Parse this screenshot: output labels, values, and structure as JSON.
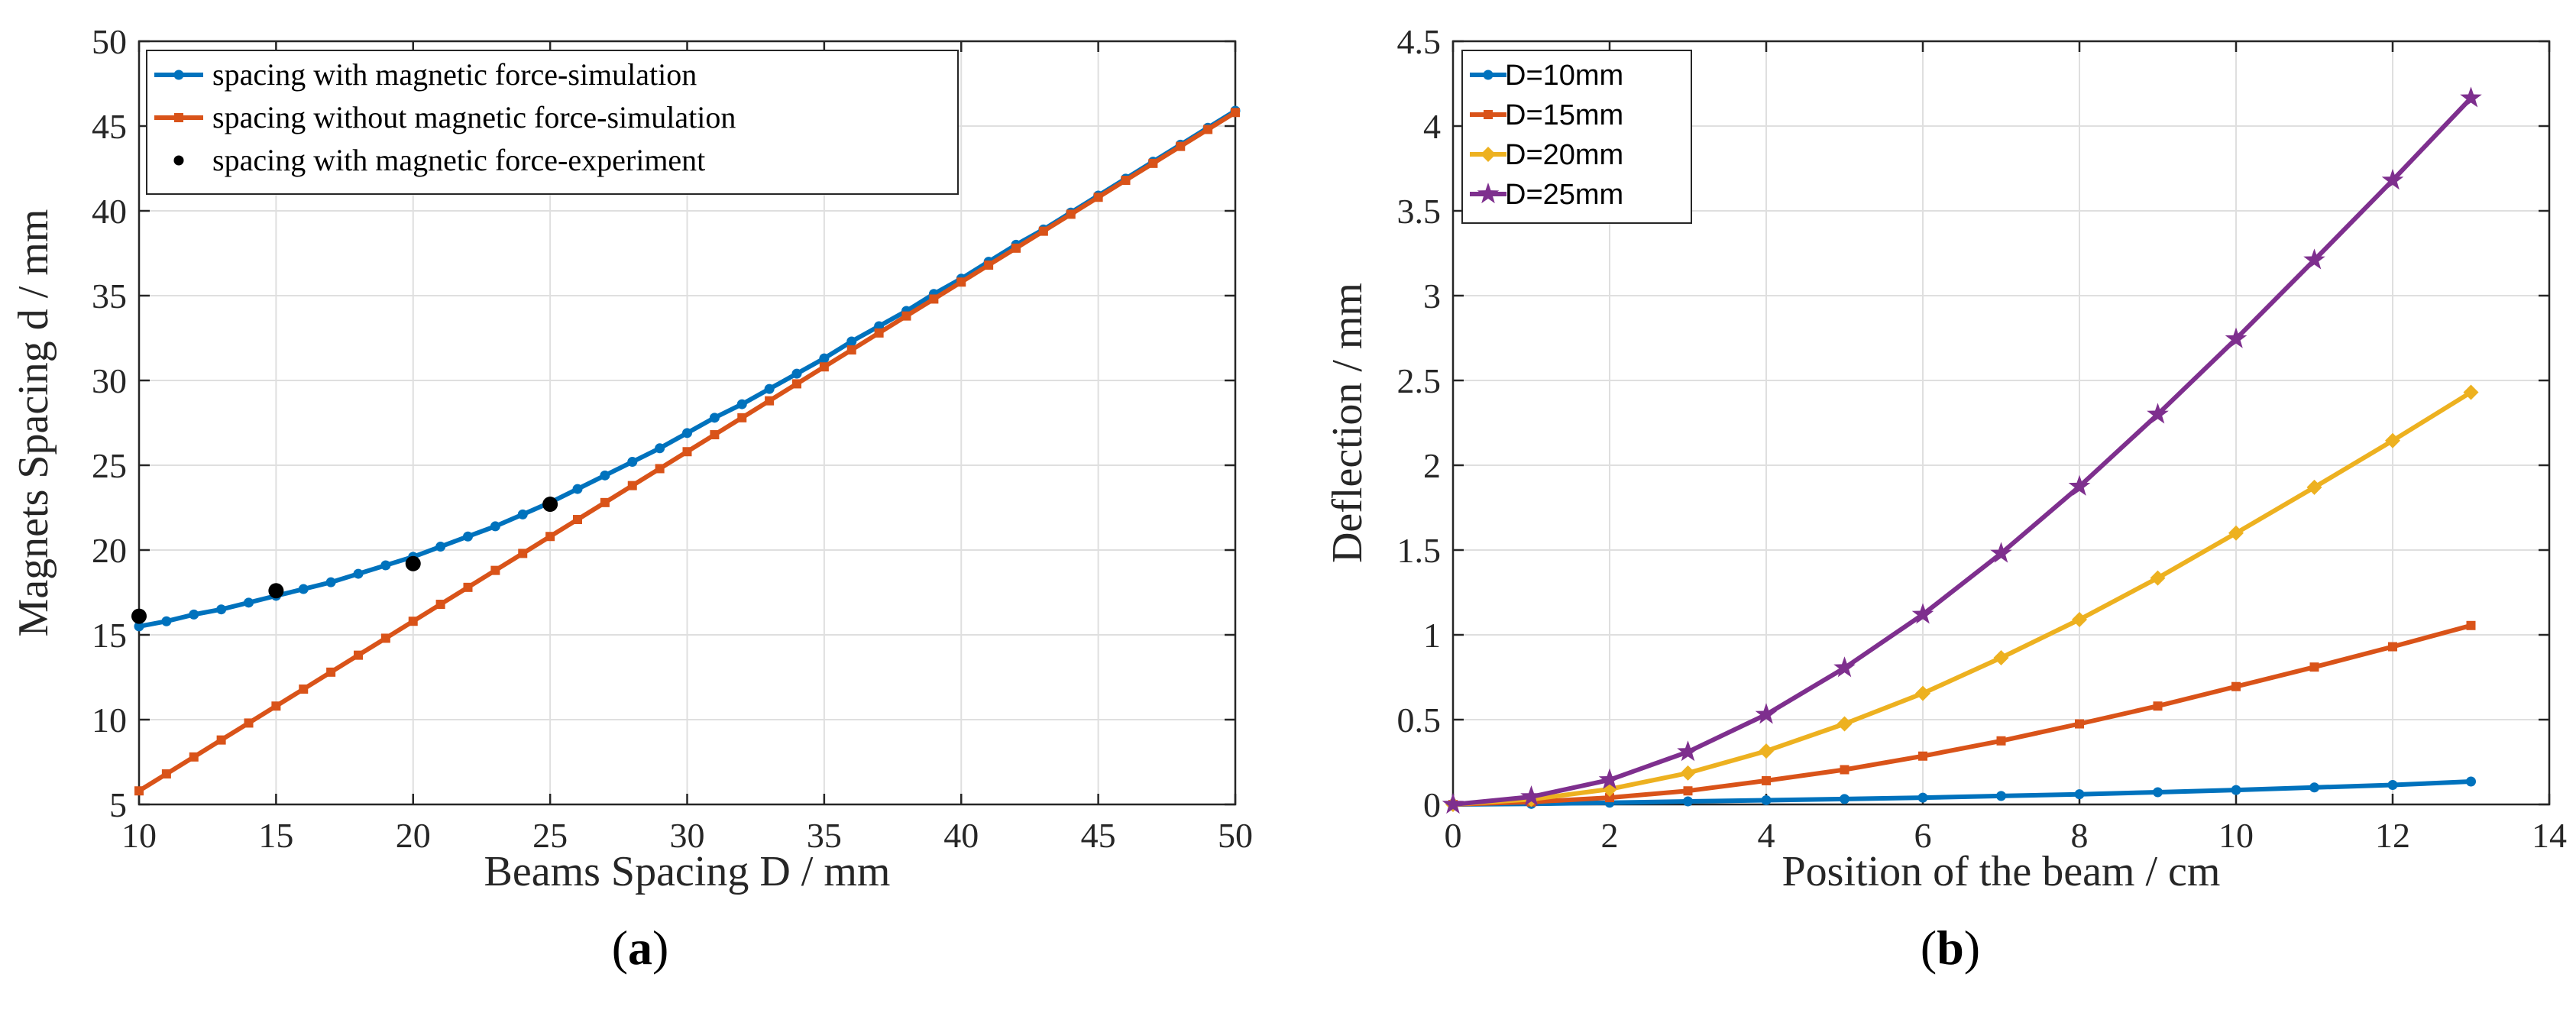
{
  "chart_data": [
    {
      "type": "line",
      "caption_letter": "a",
      "xlabel": "Beams Spacing D / mm",
      "ylabel": "Magnets Spacing d / mm",
      "xlim": [
        10,
        50
      ],
      "ylim": [
        5,
        50
      ],
      "xticks": [
        10,
        15,
        20,
        25,
        30,
        35,
        40,
        45,
        50
      ],
      "yticks": [
        5,
        10,
        15,
        20,
        25,
        30,
        35,
        40,
        45,
        50
      ],
      "grid": true,
      "legend_position": "top-left",
      "series": [
        {
          "name": "spacing with magnetic force-simulation",
          "color": "#0072BD",
          "marker": "dot",
          "x": [
            10,
            11,
            12,
            13,
            14,
            15,
            16,
            17,
            18,
            19,
            20,
            21,
            22,
            23,
            24,
            25,
            26,
            27,
            28,
            29,
            30,
            31,
            32,
            33,
            34,
            35,
            36,
            37,
            38,
            39,
            40,
            41,
            42,
            43,
            44,
            45,
            46,
            47,
            48,
            49,
            50
          ],
          "y": [
            15.5,
            15.8,
            16.2,
            16.5,
            16.9,
            17.3,
            17.7,
            18.1,
            18.6,
            19.1,
            19.6,
            20.2,
            20.8,
            21.4,
            22.1,
            22.8,
            23.6,
            24.4,
            25.2,
            26.0,
            26.9,
            27.8,
            28.6,
            29.5,
            30.4,
            31.3,
            32.3,
            33.2,
            34.1,
            35.1,
            36.0,
            37.0,
            38.0,
            38.9,
            39.9,
            40.9,
            41.9,
            42.9,
            43.9,
            44.9,
            45.9
          ]
        },
        {
          "name": "spacing without magnetic force-simulation",
          "color": "#D95319",
          "marker": "square",
          "x": [
            10,
            11,
            12,
            13,
            14,
            15,
            16,
            17,
            18,
            19,
            20,
            21,
            22,
            23,
            24,
            25,
            26,
            27,
            28,
            29,
            30,
            31,
            32,
            33,
            34,
            35,
            36,
            37,
            38,
            39,
            40,
            41,
            42,
            43,
            44,
            45,
            46,
            47,
            48,
            49,
            50
          ],
          "y": [
            5.8,
            6.8,
            7.8,
            8.8,
            9.8,
            10.8,
            11.8,
            12.8,
            13.8,
            14.8,
            15.8,
            16.8,
            17.8,
            18.8,
            19.8,
            20.8,
            21.8,
            22.8,
            23.8,
            24.8,
            25.8,
            26.8,
            27.8,
            28.8,
            29.8,
            30.8,
            31.8,
            32.8,
            33.8,
            34.8,
            35.8,
            36.8,
            37.8,
            38.8,
            39.8,
            40.8,
            41.8,
            42.8,
            43.8,
            44.8,
            45.8
          ]
        },
        {
          "name": "spacing with magnetic force-experiment",
          "color": "#000000",
          "marker": "big-dot",
          "line": false,
          "x": [
            10,
            15,
            20,
            25
          ],
          "y": [
            16.1,
            17.6,
            19.2,
            22.7
          ]
        }
      ]
    },
    {
      "type": "line",
      "caption_letter": "b",
      "xlabel": "Position of the beam / cm",
      "ylabel": "Deflection / mm",
      "xlim": [
        0,
        14
      ],
      "ylim": [
        0,
        4.5
      ],
      "xticks": [
        0,
        2,
        4,
        6,
        8,
        10,
        12,
        14
      ],
      "yticks": [
        0,
        0.5,
        1,
        1.5,
        2,
        2.5,
        3,
        3.5,
        4,
        4.5
      ],
      "grid": true,
      "legend_position": "top-left",
      "series": [
        {
          "name": "D=10mm",
          "color": "#0072BD",
          "marker": "dot",
          "x": [
            0,
            1,
            2,
            3,
            4,
            5,
            6,
            7,
            8,
            9,
            10,
            11,
            12,
            13
          ],
          "y": [
            0,
            0.003,
            0.01,
            0.018,
            0.025,
            0.032,
            0.04,
            0.05,
            0.06,
            0.072,
            0.085,
            0.1,
            0.115,
            0.135
          ]
        },
        {
          "name": "D=15mm",
          "color": "#D95319",
          "marker": "square",
          "x": [
            0,
            1,
            2,
            3,
            4,
            5,
            6,
            7,
            8,
            9,
            10,
            11,
            12,
            13
          ],
          "y": [
            0,
            0.015,
            0.04,
            0.08,
            0.14,
            0.205,
            0.285,
            0.375,
            0.475,
            0.58,
            0.695,
            0.81,
            0.93,
            1.055
          ]
        },
        {
          "name": "D=20mm",
          "color": "#EDB120",
          "marker": "diamond",
          "x": [
            0,
            1,
            2,
            3,
            4,
            5,
            6,
            7,
            8,
            9,
            10,
            11,
            12,
            13
          ],
          "y": [
            0,
            0.03,
            0.09,
            0.185,
            0.315,
            0.475,
            0.655,
            0.865,
            1.09,
            1.335,
            1.6,
            1.87,
            2.145,
            2.43
          ]
        },
        {
          "name": "D=25mm",
          "color": "#7E2F8E",
          "marker": "star",
          "x": [
            0,
            1,
            2,
            3,
            4,
            5,
            6,
            7,
            8,
            9,
            10,
            11,
            12,
            13
          ],
          "y": [
            0,
            0.045,
            0.145,
            0.31,
            0.53,
            0.805,
            1.12,
            1.48,
            1.875,
            2.3,
            2.745,
            3.21,
            3.68,
            4.165
          ]
        }
      ]
    }
  ]
}
